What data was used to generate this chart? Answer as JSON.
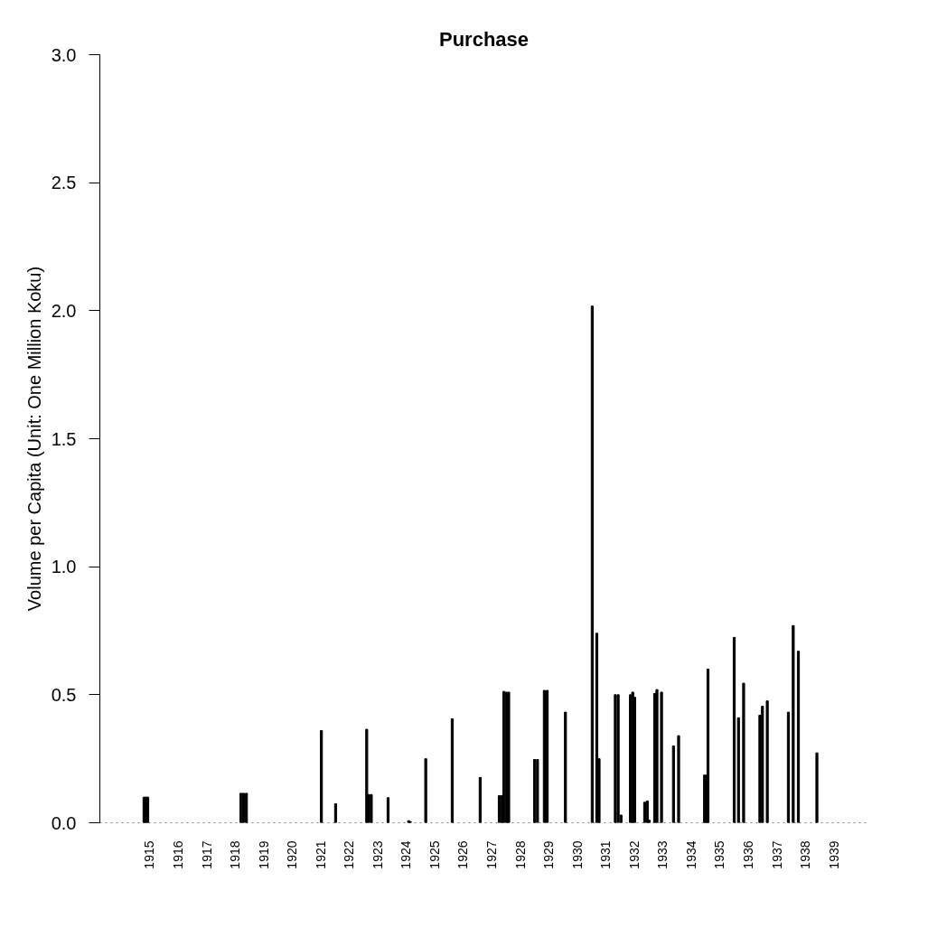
{
  "chart_data": {
    "type": "bar",
    "title": "Purchase",
    "ylabel": "Volume per Capita (Unit: One Million Koku)",
    "x": [
      1914.81,
      1914.88,
      1914.94,
      1918.21,
      1918.3,
      1918.4,
      1921.03,
      1921.53,
      1922.62,
      1922.69,
      1922.78,
      1923.37,
      1924.09,
      1924.15,
      1924.69,
      1925.62,
      1926.6,
      1927.27,
      1927.36,
      1927.43,
      1927.52,
      1927.6,
      1928.51,
      1928.61,
      1928.85,
      1928.95,
      1929.59,
      1930.53,
      1930.69,
      1930.77,
      1931.34,
      1931.44,
      1931.54,
      1931.87,
      1931.95,
      1932.02,
      1932.37,
      1932.46,
      1932.53,
      1932.72,
      1932.8,
      1932.96,
      1933.38,
      1933.56,
      1934.47,
      1934.53,
      1934.59,
      1935.51,
      1935.66,
      1935.84,
      1936.41,
      1936.5,
      1936.67,
      1937.41,
      1937.58,
      1937.76,
      1938.41
    ],
    "values": [
      0.1,
      0.1,
      0.1,
      0.115,
      0.115,
      0.115,
      0.36,
      0.074,
      0.365,
      0.11,
      0.11,
      0.098,
      0.008,
      0.004,
      0.25,
      0.406,
      0.177,
      0.106,
      0.106,
      0.513,
      0.51,
      0.51,
      0.247,
      0.247,
      0.517,
      0.517,
      0.432,
      2.018,
      0.74,
      0.25,
      0.5,
      0.5,
      0.03,
      0.5,
      0.51,
      0.49,
      0.08,
      0.085,
      0.01,
      0.505,
      0.52,
      0.51,
      0.3,
      0.34,
      0.186,
      0.186,
      0.6,
      0.724,
      0.41,
      0.545,
      0.42,
      0.455,
      0.476,
      0.432,
      0.77,
      0.67,
      0.273
    ],
    "color": "#000000",
    "xlim": [
      1913.26,
      1940.2
    ],
    "ylim": [
      0,
      3
    ],
    "xticks": [
      1915,
      1916,
      1917,
      1918,
      1919,
      1920,
      1921,
      1922,
      1923,
      1924,
      1925,
      1926,
      1927,
      1928,
      1929,
      1930,
      1931,
      1932,
      1933,
      1934,
      1935,
      1936,
      1937,
      1938,
      1939
    ],
    "yticks": [
      {
        "value": 0,
        "label": "0.0"
      },
      {
        "value": 0.5,
        "label": "0.5"
      },
      {
        "value": 1,
        "label": "1.0"
      },
      {
        "value": 1.5,
        "label": "1.5"
      },
      {
        "value": 2,
        "label": "2.0"
      },
      {
        "value": 2.5,
        "label": "2.5"
      },
      {
        "value": 3,
        "label": "3.0"
      }
    ],
    "grid": false,
    "ref_lines": [
      {
        "axis": "y",
        "value": 0,
        "label": null,
        "line_style": "dotted"
      }
    ]
  }
}
